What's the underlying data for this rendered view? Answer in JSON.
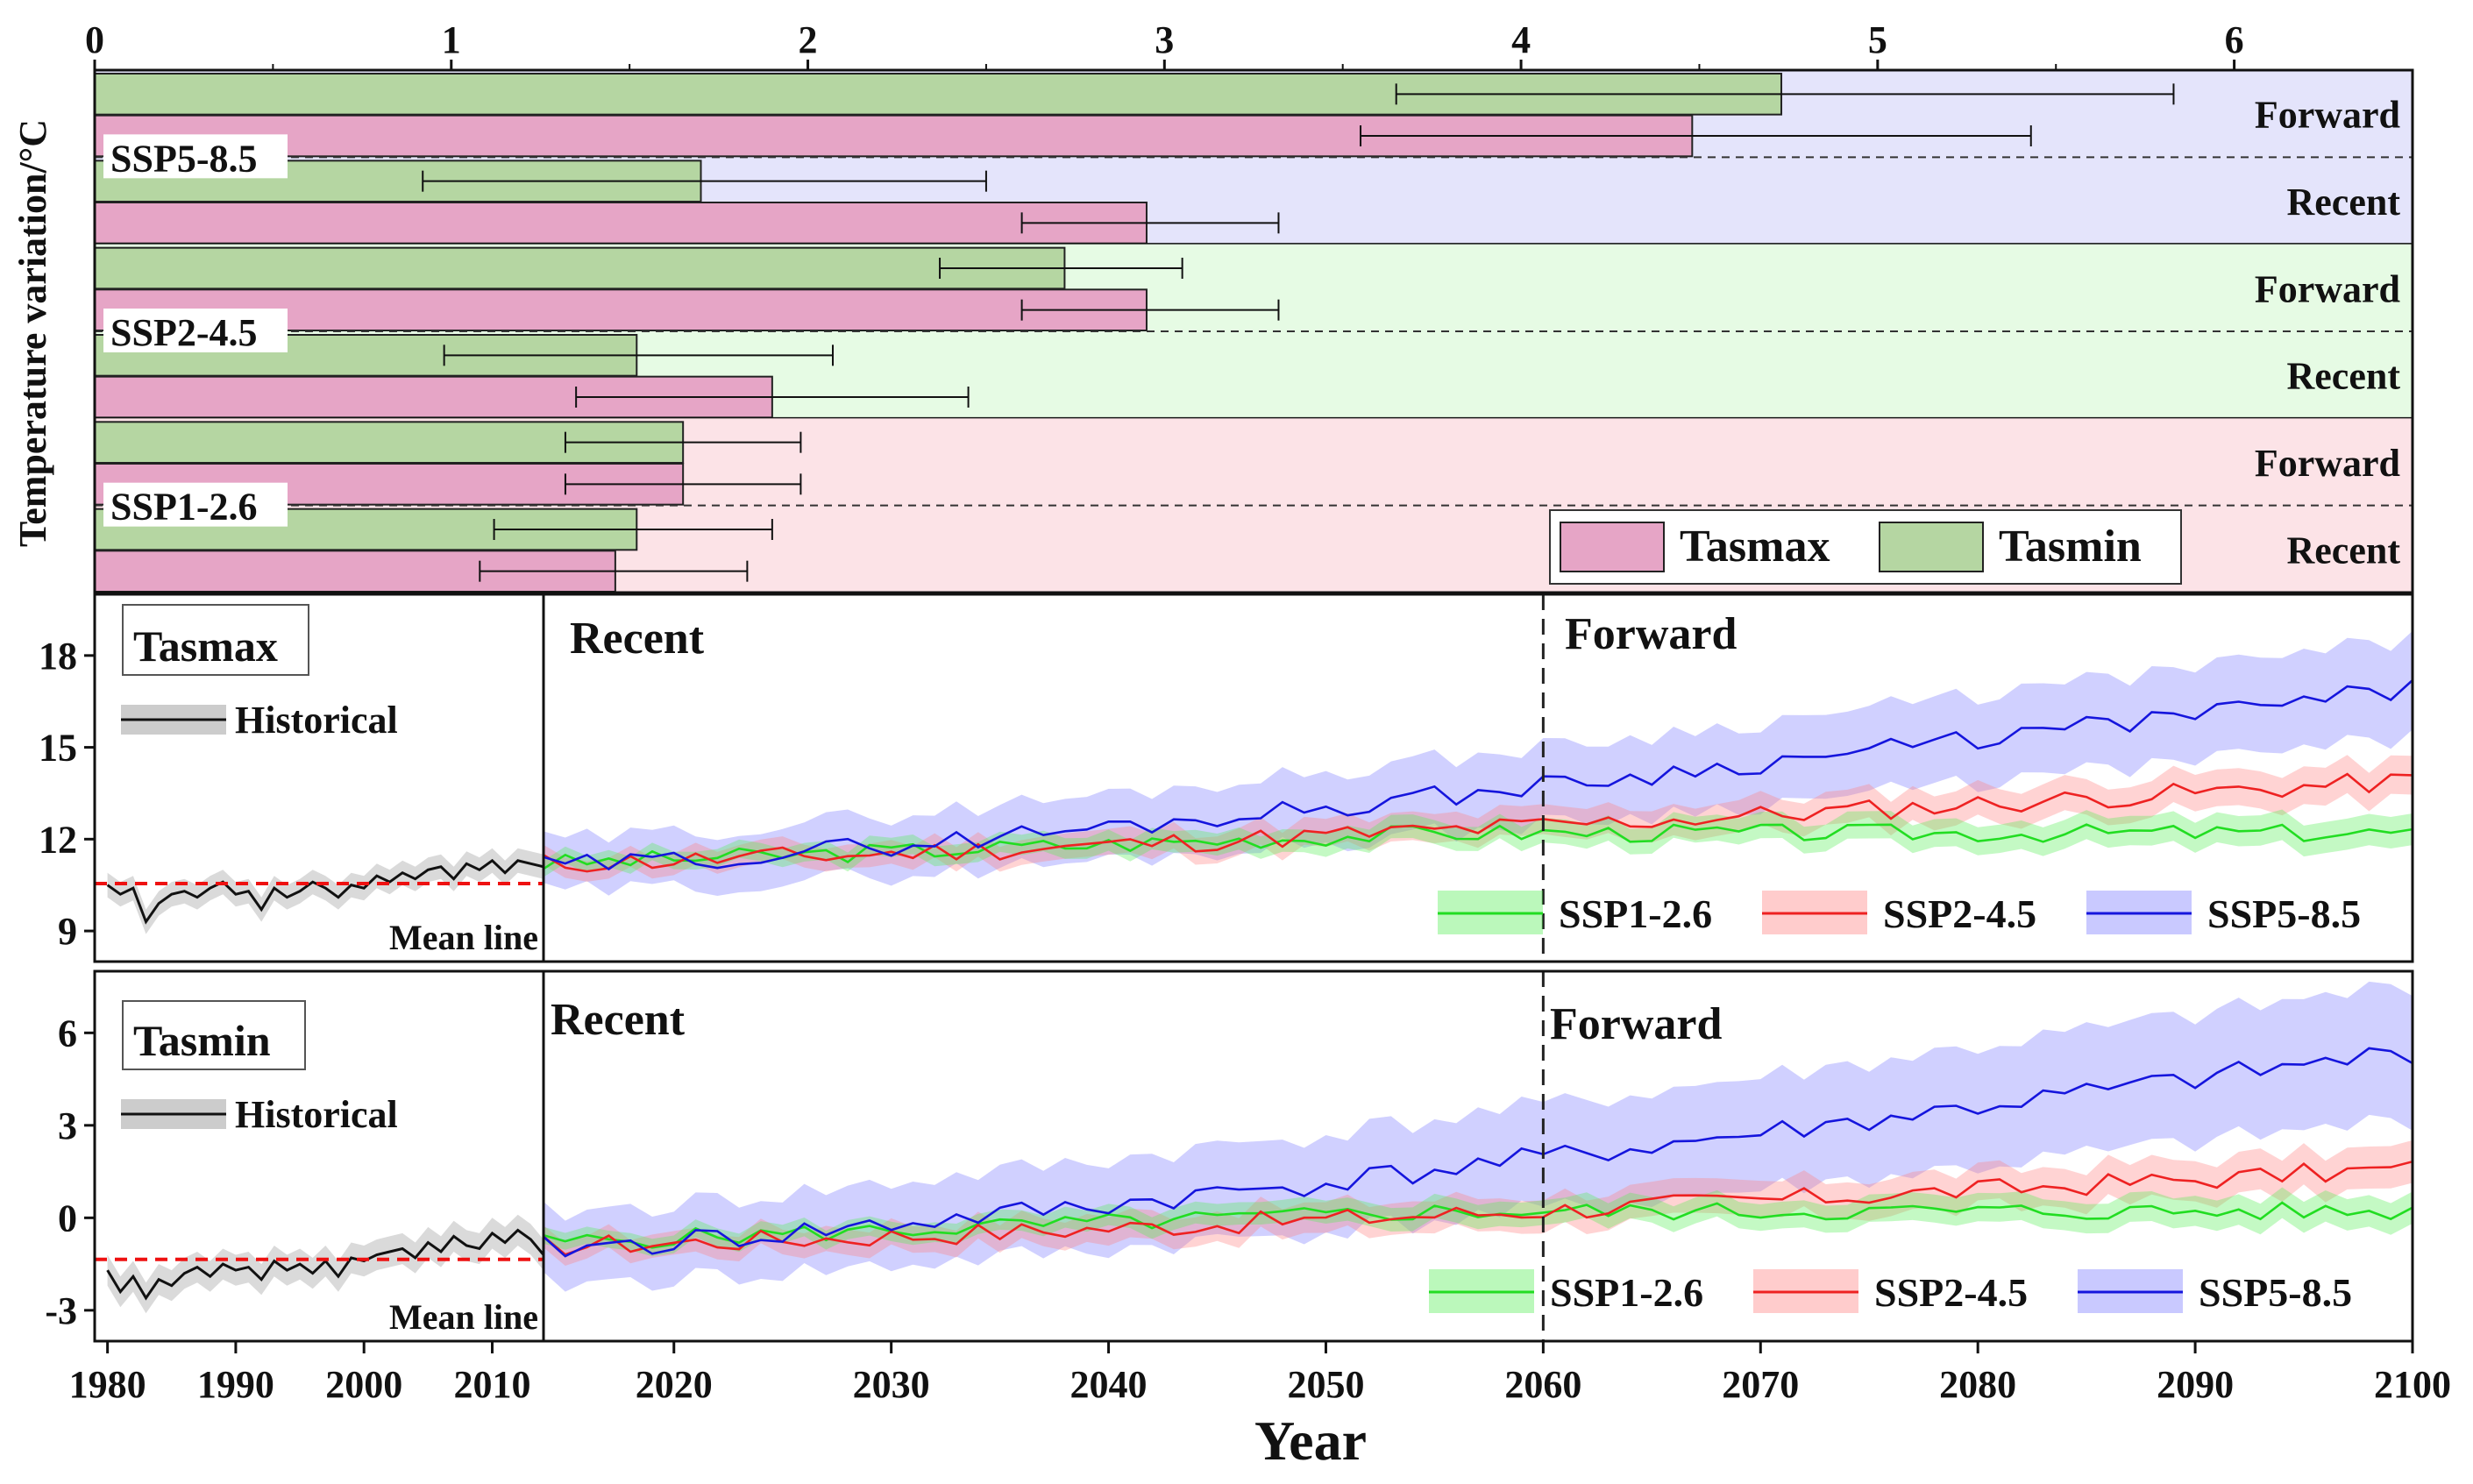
{
  "chart_data": [
    {
      "type": "bar",
      "orientation": "horizontal",
      "axis_label": "Temperature variation/°C",
      "x_ticks": [
        "0",
        "1",
        "2",
        "3",
        "4",
        "5",
        "6"
      ],
      "xlim": [
        0,
        6.5
      ],
      "groups": [
        {
          "name": "SSP5-8.5",
          "bg_color": "#e4e4fb",
          "periods": [
            {
              "label": "Forward",
              "tasmin": 4.73,
              "tasmin_err": [
                3.65,
                5.83
              ],
              "tasmax": 4.48,
              "tasmax_err": [
                3.55,
                5.43
              ]
            },
            {
              "label": "Recent",
              "tasmin": 1.7,
              "tasmin_err": [
                0.92,
                2.5
              ],
              "tasmax": 2.95,
              "tasmax_err": [
                2.6,
                3.32
              ]
            }
          ]
        },
        {
          "name": "SSP2-4.5",
          "bg_color": "#e6fbe4",
          "periods": [
            {
              "label": "Forward",
              "tasmin": 2.72,
              "tasmin_err": [
                2.37,
                3.05
              ],
              "tasmax": 2.95,
              "tasmax_err": [
                2.6,
                3.32
              ]
            },
            {
              "label": "Recent",
              "tasmin": 1.52,
              "tasmin_err": [
                0.98,
                2.07
              ],
              "tasmax": 1.9,
              "tasmax_err": [
                1.35,
                2.45
              ]
            }
          ]
        },
        {
          "name": "SSP1-2.6",
          "bg_color": "#fce3e7",
          "periods": [
            {
              "label": "Forward",
              "tasmin": 1.65,
              "tasmin_err": [
                1.32,
                1.98
              ],
              "tasmax": 1.65,
              "tasmax_err": [
                1.32,
                1.98
              ]
            },
            {
              "label": "Recent",
              "tasmin": 1.52,
              "tasmin_err": [
                1.12,
                1.9
              ],
              "tasmax": 1.46,
              "tasmax_err": [
                1.08,
                1.83
              ]
            }
          ]
        }
      ],
      "legend": [
        {
          "name": "Tasmax",
          "color": "#e6a5c6"
        },
        {
          "name": "Tasmin",
          "color": "#b5d6a2"
        }
      ]
    },
    {
      "type": "line",
      "variable": "Tasmax",
      "ylim": [
        8,
        20
      ],
      "y_ticks": [
        "9",
        "12",
        "15",
        "18"
      ],
      "historical": {
        "label": "Historical",
        "x": [
          1980,
          1981,
          1982,
          1983,
          1984,
          1985,
          1986,
          1987,
          1988,
          1989,
          1990,
          1991,
          1992,
          1993,
          1994,
          1995,
          1996,
          1997,
          1998,
          1999,
          2000,
          2001,
          2002,
          2003,
          2004,
          2005,
          2006,
          2007,
          2008,
          2009,
          2010,
          2011,
          2012,
          2013,
          2014
        ],
        "values": [
          10.5,
          10.2,
          10.4,
          9.3,
          9.9,
          10.2,
          10.3,
          10.1,
          10.4,
          10.6,
          10.2,
          10.3,
          9.7,
          10.4,
          10.1,
          10.3,
          10.6,
          10.4,
          10.1,
          10.5,
          10.4,
          10.8,
          10.6,
          10.9,
          10.7,
          11.0,
          11.1,
          10.7,
          11.2,
          11.0,
          11.3,
          10.9,
          11.3,
          11.2,
          11.1
        ],
        "band": 0.4,
        "mean_line": 10.55,
        "mean_label": "Mean line"
      },
      "projections": {
        "x_start": 2014,
        "x_end": 2100,
        "divider_year": 2060,
        "period_labels": [
          "Recent",
          "Forward"
        ],
        "series": [
          {
            "name": "SSP1-2.6",
            "color": "#22dd22",
            "band_color": "#55ee55",
            "base": 11.2,
            "end": 12.2,
            "plateau": 2055,
            "noise": 0.3,
            "seed": 3,
            "band": 0.45
          },
          {
            "name": "SSP2-4.5",
            "color": "#ee2222",
            "band_color": "#ff8080",
            "base": 11.2,
            "end": 13.9,
            "plateau": 0,
            "noise": 0.35,
            "seed": 11,
            "band": 0.55
          },
          {
            "name": "SSP5-8.5",
            "color": "#1515dd",
            "band_color": "#7777ff",
            "base": 11.1,
            "end": 16.9,
            "plateau": 0,
            "noise": 0.35,
            "seed": 29,
            "band": 1.4
          }
        ]
      }
    },
    {
      "type": "line",
      "variable": "Tasmin",
      "ylim": [
        -4,
        8
      ],
      "y_ticks": [
        "-3",
        "0",
        "3",
        "6"
      ],
      "historical": {
        "label": "Historical",
        "x": [
          1980,
          1981,
          1982,
          1983,
          1984,
          1985,
          1986,
          1987,
          1988,
          1989,
          1990,
          1991,
          1992,
          1993,
          1994,
          1995,
          1996,
          1997,
          1998,
          1999,
          2000,
          2001,
          2002,
          2003,
          2004,
          2005,
          2006,
          2007,
          2008,
          2009,
          2010,
          2011,
          2012,
          2013,
          2014
        ],
        "values": [
          -1.7,
          -2.4,
          -1.9,
          -2.6,
          -2.0,
          -2.2,
          -1.8,
          -1.6,
          -1.9,
          -1.5,
          -1.7,
          -1.6,
          -2.0,
          -1.4,
          -1.7,
          -1.5,
          -1.8,
          -1.4,
          -1.9,
          -1.3,
          -1.4,
          -1.2,
          -1.1,
          -1.0,
          -1.3,
          -0.8,
          -1.1,
          -0.6,
          -0.9,
          -1.0,
          -0.5,
          -0.8,
          -0.4,
          -0.7,
          -1.2
        ],
        "band": 0.5,
        "mean_line": -1.35,
        "mean_label": "Mean line"
      },
      "projections": {
        "x_start": 2014,
        "x_end": 2100,
        "divider_year": 2060,
        "period_labels": [
          "Recent",
          "Forward"
        ],
        "series": [
          {
            "name": "SSP1-2.6",
            "color": "#22dd22",
            "band_color": "#55ee55",
            "base": -0.8,
            "end": 0.2,
            "plateau": 2055,
            "noise": 0.3,
            "seed": 5,
            "band": 0.45
          },
          {
            "name": "SSP2-4.5",
            "color": "#ee2222",
            "band_color": "#ff8080",
            "base": -0.9,
            "end": 1.6,
            "plateau": 0,
            "noise": 0.35,
            "seed": 17,
            "band": 0.6
          },
          {
            "name": "SSP5-8.5",
            "color": "#1515dd",
            "band_color": "#7777ff",
            "base": -1.0,
            "end": 5.4,
            "plateau": 0,
            "noise": 0.4,
            "seed": 41,
            "band": 1.9
          }
        ]
      }
    }
  ],
  "x_axis": {
    "label": "Year",
    "hist_ticks": [
      "1980",
      "1990",
      "2000",
      "2010"
    ],
    "proj_ticks": [
      "2020",
      "2030",
      "2040",
      "2050",
      "2060",
      "2070",
      "2080",
      "2090",
      "2100"
    ]
  }
}
